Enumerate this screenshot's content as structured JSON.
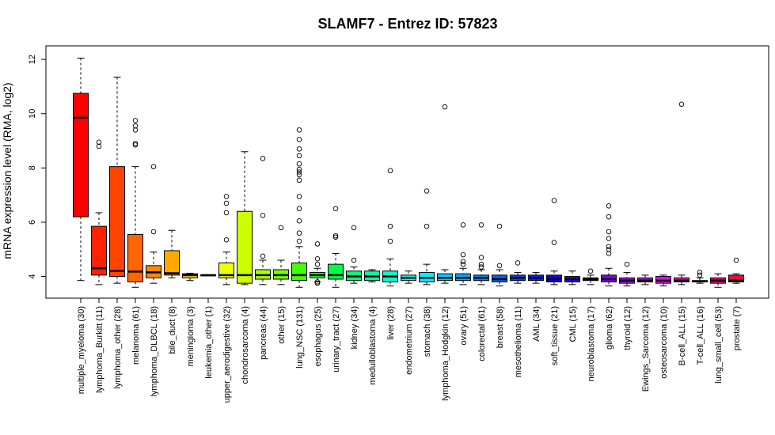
{
  "chart_data": {
    "type": "boxplot",
    "title": "SLAMF7  -  Entrez ID: 57823",
    "ylabel": "mRNA expression level (RMA, log2)",
    "xlabel": "",
    "ylim": [
      3.2,
      12.5
    ],
    "yticks": [
      4,
      6,
      8,
      10,
      12
    ],
    "grid": false,
    "categories": [
      "multiple_myeloma (30)",
      "lymphoma_Burkitt (11)",
      "lymphoma_other (28)",
      "melanoma (61)",
      "lymphoma_DLBCL (18)",
      "bile_duct (8)",
      "meningioma (3)",
      "leukemia_other (1)",
      "upper_aerodigestive (32)",
      "chondrosarcoma (4)",
      "pancreas (44)",
      "other (15)",
      "lung_NSC (131)",
      "esophagus (25)",
      "urinary_tract (27)",
      "kidney (34)",
      "medulloblastoma (4)",
      "liver (28)",
      "endometrium (27)",
      "stomach (38)",
      "lymphoma_Hodgkin (12)",
      "ovary (51)",
      "colorectal (61)",
      "breast (58)",
      "mesothelioma (11)",
      "AML (34)",
      "soft_tissue (21)",
      "CML (15)",
      "neuroblastoma (17)",
      "glioma (62)",
      "thyroid (12)",
      "Ewings_Sarcoma (12)",
      "osteosarcoma (10)",
      "B-cell_ALL (15)",
      "T-cell_ALL (16)",
      "lung_small_cell (53)",
      "prostate (7)"
    ],
    "colors": [
      "#ff0000",
      "#ff2200",
      "#ff4400",
      "#ff6600",
      "#ff8800",
      "#ffaa00",
      "#ffcc00",
      "#ffee00",
      "#eeff00",
      "#ccff00",
      "#aaff00",
      "#77ff00",
      "#44ff00",
      "#22ff22",
      "#00ff44",
      "#00ff77",
      "#00ffaa",
      "#00ffcc",
      "#00ffee",
      "#00eeff",
      "#00ccff",
      "#00aaff",
      "#0088ff",
      "#0066ff",
      "#0044ff",
      "#0022ff",
      "#1100ff",
      "#3300ff",
      "#5500ff",
      "#8800ff",
      "#aa00ff",
      "#cc00ff",
      "#ee00ff",
      "#ff00dd",
      "#ff00aa",
      "#ff0077",
      "#ff0044"
    ],
    "boxes": [
      {
        "min": 3.85,
        "q1": 6.2,
        "median": 9.85,
        "q3": 10.75,
        "max": 12.05,
        "outliers": []
      },
      {
        "min": 3.7,
        "q1": 4.05,
        "median": 4.3,
        "q3": 5.85,
        "max": 6.35,
        "outliers": [
          8.8,
          8.95
        ]
      },
      {
        "min": 3.75,
        "q1": 4.0,
        "median": 4.2,
        "q3": 8.05,
        "max": 11.35,
        "outliers": []
      },
      {
        "min": 3.6,
        "q1": 3.8,
        "median": 4.18,
        "q3": 5.55,
        "max": 8.05,
        "outliers": [
          8.85,
          8.9,
          9.4,
          9.55,
          9.75
        ]
      },
      {
        "min": 3.75,
        "q1": 3.95,
        "median": 4.15,
        "q3": 4.4,
        "max": 4.9,
        "outliers": [
          5.65,
          8.05
        ]
      },
      {
        "min": 3.95,
        "q1": 4.05,
        "median": 4.12,
        "q3": 4.95,
        "max": 5.7,
        "outliers": []
      },
      {
        "min": 3.85,
        "q1": 3.95,
        "median": 4.05,
        "q3": 4.1,
        "max": 4.12,
        "outliers": []
      },
      {
        "min": 4.05,
        "q1": 4.05,
        "median": 4.05,
        "q3": 4.05,
        "max": 4.05,
        "outliers": []
      },
      {
        "min": 3.7,
        "q1": 3.95,
        "median": 4.05,
        "q3": 4.5,
        "max": 4.9,
        "outliers": [
          5.35,
          6.35,
          6.7,
          6.95
        ]
      },
      {
        "min": 3.7,
        "q1": 3.75,
        "median": 4.05,
        "q3": 6.4,
        "max": 8.6,
        "outliers": []
      },
      {
        "min": 3.7,
        "q1": 3.9,
        "median": 4.05,
        "q3": 4.25,
        "max": 4.6,
        "outliers": [
          4.75,
          6.25,
          8.35
        ]
      },
      {
        "min": 3.7,
        "q1": 3.9,
        "median": 4.05,
        "q3": 4.25,
        "max": 4.6,
        "outliers": [
          5.8
        ]
      },
      {
        "min": 3.6,
        "q1": 3.85,
        "median": 4.05,
        "q3": 4.5,
        "max": 5.1,
        "outliers": [
          5.3,
          5.6,
          6.05,
          6.5,
          6.95,
          7.55,
          7.75,
          7.85,
          7.95,
          8.15,
          8.45,
          8.7,
          9.05,
          9.4
        ]
      },
      {
        "min": 3.8,
        "q1": 3.95,
        "median": 4.05,
        "q3": 4.15,
        "max": 4.3,
        "outliers": [
          3.75,
          3.8,
          4.45,
          4.65,
          5.2
        ]
      },
      {
        "min": 3.6,
        "q1": 3.9,
        "median": 4.05,
        "q3": 4.45,
        "max": 4.85,
        "outliers": [
          5.45,
          5.5,
          6.5
        ]
      },
      {
        "min": 3.75,
        "q1": 3.85,
        "median": 4.0,
        "q3": 4.2,
        "max": 4.35,
        "outliers": [
          4.6,
          5.8
        ]
      },
      {
        "min": 3.8,
        "q1": 3.85,
        "median": 4.0,
        "q3": 4.2,
        "max": 4.25,
        "outliers": []
      },
      {
        "min": 3.65,
        "q1": 3.8,
        "median": 4.0,
        "q3": 4.2,
        "max": 4.65,
        "outliers": [
          5.3,
          5.85,
          7.9
        ]
      },
      {
        "min": 3.75,
        "q1": 3.85,
        "median": 3.95,
        "q3": 4.05,
        "max": 4.2,
        "outliers": []
      },
      {
        "min": 3.7,
        "q1": 3.8,
        "median": 3.95,
        "q3": 4.15,
        "max": 4.45,
        "outliers": [
          5.85,
          7.15
        ]
      },
      {
        "min": 3.75,
        "q1": 3.85,
        "median": 3.95,
        "q3": 4.1,
        "max": 4.25,
        "outliers": [
          10.25
        ]
      },
      {
        "min": 3.7,
        "q1": 3.85,
        "median": 3.95,
        "q3": 4.1,
        "max": 4.3,
        "outliers": [
          4.45,
          4.55,
          4.8,
          5.9
        ]
      },
      {
        "min": 3.7,
        "q1": 3.85,
        "median": 3.95,
        "q3": 4.05,
        "max": 4.25,
        "outliers": [
          4.35,
          4.45,
          4.7,
          5.9
        ]
      },
      {
        "min": 3.65,
        "q1": 3.8,
        "median": 3.9,
        "q3": 4.05,
        "max": 4.25,
        "outliers": [
          4.4,
          5.85
        ]
      },
      {
        "min": 3.75,
        "q1": 3.85,
        "median": 3.95,
        "q3": 4.05,
        "max": 4.15,
        "outliers": [
          4.5
        ]
      },
      {
        "min": 3.75,
        "q1": 3.85,
        "median": 3.95,
        "q3": 4.05,
        "max": 4.15,
        "outliers": []
      },
      {
        "min": 3.7,
        "q1": 3.8,
        "median": 3.9,
        "q3": 4.05,
        "max": 4.2,
        "outliers": [
          5.25,
          6.8
        ]
      },
      {
        "min": 3.7,
        "q1": 3.8,
        "median": 3.9,
        "q3": 4.0,
        "max": 4.2,
        "outliers": []
      },
      {
        "min": 3.7,
        "q1": 3.85,
        "median": 3.9,
        "q3": 3.95,
        "max": 4.05,
        "outliers": [
          4.2
        ]
      },
      {
        "min": 3.65,
        "q1": 3.8,
        "median": 3.9,
        "q3": 4.05,
        "max": 4.3,
        "outliers": [
          4.85,
          5.0,
          5.1,
          5.4,
          5.65,
          6.2,
          6.6
        ]
      },
      {
        "min": 3.65,
        "q1": 3.75,
        "median": 3.85,
        "q3": 3.95,
        "max": 4.15,
        "outliers": [
          4.45
        ]
      },
      {
        "min": 3.7,
        "q1": 3.8,
        "median": 3.85,
        "q3": 3.95,
        "max": 4.05,
        "outliers": []
      },
      {
        "min": 3.65,
        "q1": 3.75,
        "median": 3.85,
        "q3": 4.0,
        "max": 4.05,
        "outliers": []
      },
      {
        "min": 3.7,
        "q1": 3.8,
        "median": 3.85,
        "q3": 3.95,
        "max": 4.05,
        "outliers": [
          10.35
        ]
      },
      {
        "min": 3.75,
        "q1": 3.8,
        "median": 3.82,
        "q3": 3.85,
        "max": 3.95,
        "outliers": [
          4.05,
          4.15
        ]
      },
      {
        "min": 3.6,
        "q1": 3.75,
        "median": 3.85,
        "q3": 3.95,
        "max": 4.1,
        "outliers": []
      },
      {
        "min": 3.75,
        "q1": 3.8,
        "median": 3.85,
        "q3": 4.05,
        "max": 4.1,
        "outliers": [
          4.6
        ]
      }
    ]
  }
}
